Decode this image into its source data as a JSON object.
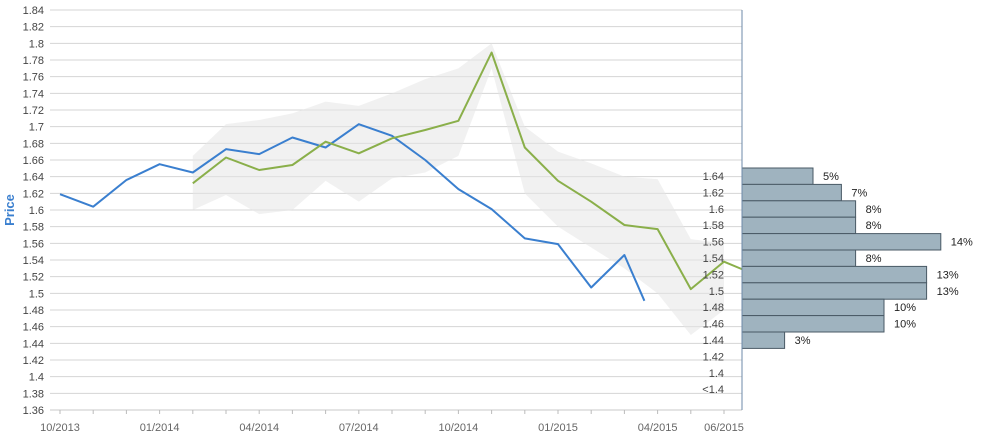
{
  "chart_data": {
    "type": "line",
    "ylabel": "Price",
    "xlabel": "",
    "ylim": [
      1.36,
      1.84
    ],
    "y_ticks": [
      "1.36",
      "1.38",
      "1.4",
      "1.42",
      "1.44",
      "1.46",
      "1.48",
      "1.5",
      "1.52",
      "1.54",
      "1.56",
      "1.58",
      "1.6",
      "1.62",
      "1.64",
      "1.66",
      "1.68",
      "1.7",
      "1.72",
      "1.74",
      "1.76",
      "1.78",
      "1.8",
      "1.82",
      "1.84"
    ],
    "x_ticks": [
      "10/2013",
      "01/2014",
      "04/2014",
      "07/2014",
      "10/2014",
      "01/2015",
      "04/2015",
      "06/2015"
    ],
    "grid": true,
    "series": [
      {
        "color": "#3a7fcf",
        "points": [
          [
            "10/2013",
            1.619
          ],
          [
            "11/2013",
            1.604
          ],
          [
            "12/2013",
            1.636
          ],
          [
            "01/2014",
            1.655
          ],
          [
            "02/2014",
            1.645
          ],
          [
            "03/2014",
            1.673
          ],
          [
            "04/2014",
            1.667
          ],
          [
            "05/2014",
            1.687
          ],
          [
            "06/2014",
            1.675
          ],
          [
            "07/2014",
            1.703
          ],
          [
            "08/2014",
            1.689
          ],
          [
            "09/2014",
            1.66
          ],
          [
            "10/2014",
            1.625
          ],
          [
            "11/2014",
            1.601
          ],
          [
            "12/2014",
            1.566
          ],
          [
            "01/2015",
            1.559
          ],
          [
            "02/2015",
            1.507
          ],
          [
            "03/2015",
            1.546
          ],
          [
            "03/2015",
            1.491
          ]
        ]
      },
      {
        "color": "#8aaf4a",
        "points": [
          [
            "02/2014",
            1.632
          ],
          [
            "03/2014",
            1.663
          ],
          [
            "04/2014",
            1.648
          ],
          [
            "05/2014",
            1.654
          ],
          [
            "06/2014",
            1.682
          ],
          [
            "07/2014",
            1.668
          ],
          [
            "08/2014",
            1.686
          ],
          [
            "09/2014",
            1.696
          ],
          [
            "10/2014",
            1.707
          ],
          [
            "11/2014",
            1.789
          ],
          [
            "12/2014",
            1.675
          ],
          [
            "01/2015",
            1.635
          ],
          [
            "02/2015",
            1.61
          ],
          [
            "03/2015",
            1.582
          ],
          [
            "04/2015",
            1.577
          ],
          [
            "05/2015",
            1.505
          ],
          [
            "06/2015",
            1.538
          ],
          [
            "06/2015",
            1.528
          ]
        ]
      }
    ],
    "band": {
      "color": "#e6e6e6",
      "upper": [
        [
          "02/2014",
          1.665
        ],
        [
          "03/2014",
          1.703
        ],
        [
          "04/2014",
          1.708
        ],
        [
          "05/2014",
          1.716
        ],
        [
          "06/2014",
          1.73
        ],
        [
          "07/2014",
          1.725
        ],
        [
          "08/2014",
          1.74
        ],
        [
          "09/2014",
          1.757
        ],
        [
          "10/2014",
          1.77
        ],
        [
          "11/2014",
          1.8
        ],
        [
          "12/2014",
          1.7
        ],
        [
          "01/2015",
          1.67
        ],
        [
          "02/2015",
          1.656
        ],
        [
          "03/2015",
          1.64
        ],
        [
          "04/2015",
          1.637
        ],
        [
          "05/2015",
          1.565
        ],
        [
          "06/2015",
          1.56
        ]
      ],
      "lower": [
        [
          "02/2014",
          1.6
        ],
        [
          "03/2014",
          1.618
        ],
        [
          "04/2014",
          1.595
        ],
        [
          "05/2014",
          1.6
        ],
        [
          "06/2014",
          1.635
        ],
        [
          "07/2014",
          1.61
        ],
        [
          "08/2014",
          1.638
        ],
        [
          "09/2014",
          1.645
        ],
        [
          "10/2014",
          1.665
        ],
        [
          "11/2014",
          1.77
        ],
        [
          "12/2014",
          1.62
        ],
        [
          "01/2015",
          1.58
        ],
        [
          "02/2015",
          1.555
        ],
        [
          "03/2015",
          1.53
        ],
        [
          "04/2015",
          1.5
        ],
        [
          "05/2015",
          1.45
        ],
        [
          "06/2015",
          1.48
        ]
      ]
    },
    "distribution": {
      "type": "bar",
      "orientation": "horizontal",
      "color": "#9fb3bf",
      "categories": [
        "1.64",
        "1.62",
        "1.6",
        "1.58",
        "1.56",
        "1.54",
        "1.52",
        "1.5",
        "1.48",
        "1.46",
        "1.44",
        "1.42",
        "1.4",
        "<1.4"
      ],
      "values": [
        5,
        7,
        8,
        8,
        14,
        8,
        13,
        13,
        10,
        10,
        3,
        0,
        0,
        0
      ],
      "labels": [
        "5%",
        "7%",
        "8%",
        "8%",
        "14%",
        "8%",
        "13%",
        "13%",
        "10%",
        "10%",
        "3%",
        "",
        "",
        ""
      ]
    }
  }
}
